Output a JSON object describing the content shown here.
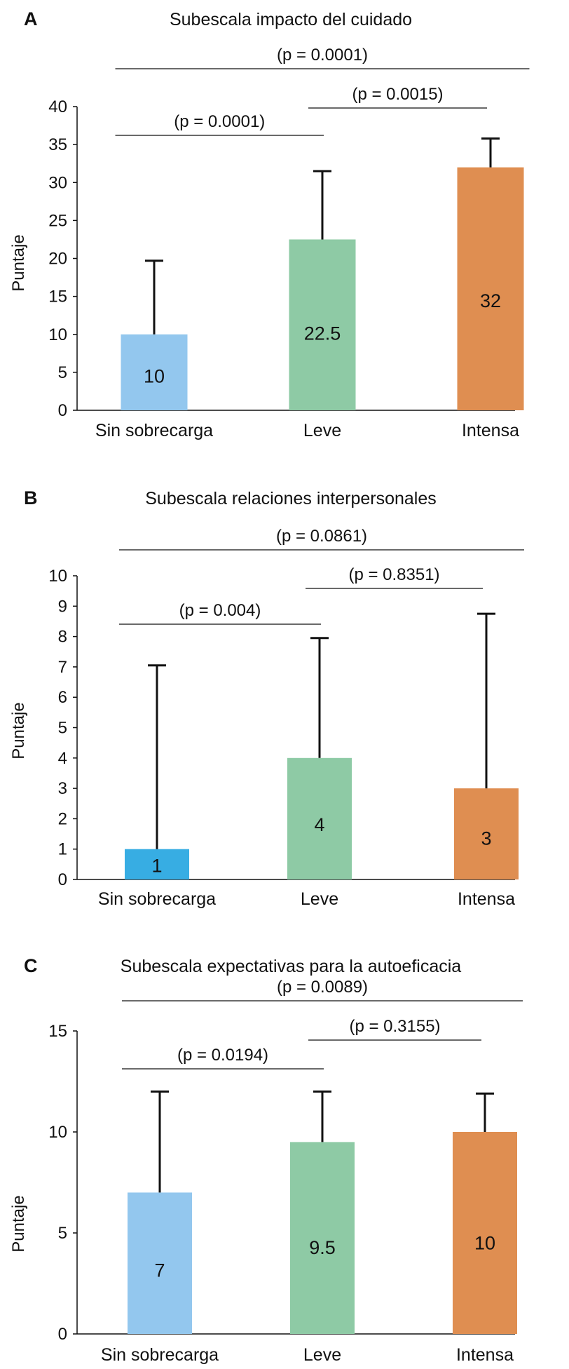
{
  "chart_data": [
    {
      "type": "bar",
      "panel": "A",
      "title": "Subescala impacto del cuidado",
      "xlabel": "",
      "ylabel": "Puntaje",
      "ylim": [
        0,
        40
      ],
      "yticks": [
        0,
        5,
        10,
        15,
        20,
        25,
        30,
        35,
        40
      ],
      "grid": false,
      "categories": [
        "Sin sobrecarga",
        "Leve",
        "Intensa"
      ],
      "values": [
        10,
        22.5,
        32
      ],
      "value_labels": [
        "10",
        "22.5",
        "32"
      ],
      "error_upper": [
        19.7,
        31.5,
        35.8
      ],
      "colors": [
        "#93c7ee",
        "#8ecaa5",
        "#df8e51"
      ],
      "comparisons": [
        {
          "from": 0,
          "to": 2,
          "label": "(p = 0.0001)"
        },
        {
          "from": 1,
          "to": 2,
          "label": "(p = 0.0015)"
        },
        {
          "from": 0,
          "to": 1,
          "label": "(p = 0.0001)"
        }
      ]
    },
    {
      "type": "bar",
      "panel": "B",
      "title": "Subescala relaciones interpersonales",
      "xlabel": "",
      "ylabel": "Puntaje",
      "ylim": [
        0,
        10
      ],
      "yticks": [
        0,
        1,
        2,
        3,
        4,
        5,
        6,
        7,
        8,
        9,
        10
      ],
      "grid": false,
      "categories": [
        "Sin sobrecarga",
        "Leve",
        "Intensa"
      ],
      "values": [
        1,
        4,
        3
      ],
      "value_labels": [
        "1",
        "4",
        "3"
      ],
      "error_upper": [
        7.05,
        7.95,
        8.75
      ],
      "colors": [
        "#37ade3",
        "#8ecaa5",
        "#df8e51"
      ],
      "comparisons": [
        {
          "from": 0,
          "to": 2,
          "label": "(p = 0.0861)"
        },
        {
          "from": 1,
          "to": 2,
          "label": "(p = 0.8351)"
        },
        {
          "from": 0,
          "to": 1,
          "label": "(p = 0.004)"
        }
      ]
    },
    {
      "type": "bar",
      "panel": "C",
      "title": "Subescala expectativas para la autoeficacia",
      "xlabel": "",
      "ylabel": "Puntaje",
      "ylim": [
        0,
        15
      ],
      "yticks": [
        0,
        5,
        10,
        15
      ],
      "grid": false,
      "categories": [
        "Sin sobrecarga",
        "Leve",
        "Intensa"
      ],
      "values": [
        7,
        9.5,
        10
      ],
      "value_labels": [
        "7",
        "9.5",
        "10"
      ],
      "error_upper": [
        12,
        12,
        11.9
      ],
      "colors": [
        "#93c7ee",
        "#8ecaa5",
        "#df8e51"
      ],
      "comparisons": [
        {
          "from": 0,
          "to": 2,
          "label": "(p = 0.0089)"
        },
        {
          "from": 1,
          "to": 2,
          "label": "(p = 0.3155)"
        },
        {
          "from": 0,
          "to": 1,
          "label": "(p = 0.0194)"
        }
      ]
    }
  ]
}
